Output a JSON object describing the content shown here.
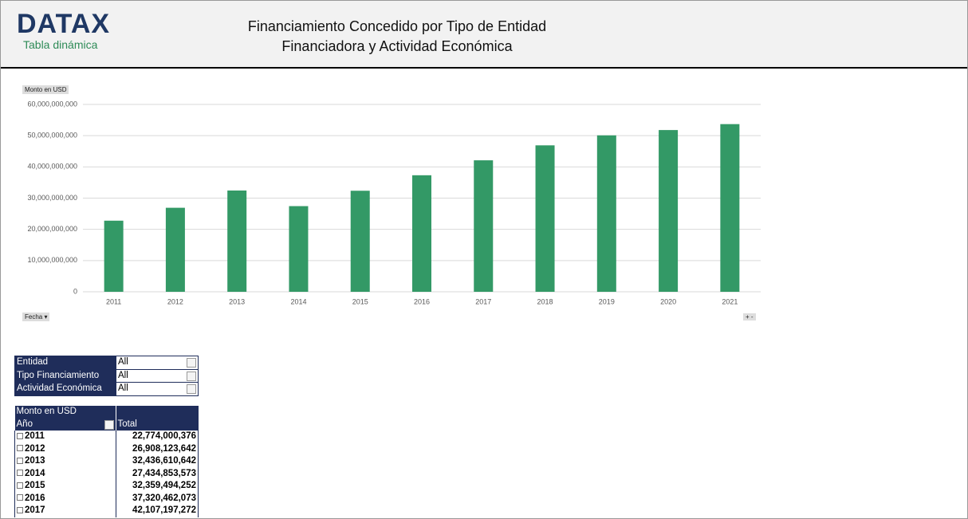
{
  "header": {
    "logo": "DATAX",
    "subtitle": "Tabla dinámica",
    "title_lines": [
      "Financiamiento Concedido por Tipo de Entidad",
      "Financiadora y Actividad Económica"
    ]
  },
  "chart_data": {
    "type": "bar",
    "value_field": "Monto en USD",
    "axis_field": "Fecha",
    "categories": [
      "2011",
      "2012",
      "2013",
      "2014",
      "2015",
      "2016",
      "2017",
      "2018",
      "2019",
      "2020",
      "2021"
    ],
    "values": [
      22774000376,
      26908123642,
      32436610642,
      27434853573,
      32359494252,
      37320462073,
      42107197272,
      46900000000,
      50100000000,
      51800000000,
      53700000000
    ],
    "color": "#339966",
    "ylim": [
      0,
      60000000000
    ],
    "yticks": [
      0,
      {
        "value": 10000000000,
        "label": "10,000,000,000"
      },
      {
        "value": 20000000000,
        "label": "20,000,000,000"
      },
      {
        "value": 30000000000,
        "label": "30,000,000,000"
      },
      {
        "value": 40000000000,
        "label": "40,000,000,000"
      },
      {
        "value": 50000000000,
        "label": "50,000,000,000"
      },
      {
        "value": 60000000000,
        "label": "60,000,000,000"
      }
    ],
    "grid": true
  },
  "filters": [
    {
      "label": "Entidad",
      "value": "All"
    },
    {
      "label": "Tipo Financiamiento",
      "value": "All"
    },
    {
      "label": "Actividad Económica",
      "value": "All"
    }
  ],
  "pivot": {
    "title": "Monto en USD",
    "row_header": "Año",
    "value_header": "Total",
    "rows": [
      [
        "2011",
        "22,774,000,376"
      ],
      [
        "2012",
        "26,908,123,642"
      ],
      [
        "2013",
        "32,436,610,642"
      ],
      [
        "2014",
        "27,434,853,573"
      ],
      [
        "2015",
        "32,359,494,252"
      ],
      [
        "2016",
        "37,320,462,073"
      ],
      [
        "2017",
        "42,107,197,272"
      ]
    ]
  }
}
